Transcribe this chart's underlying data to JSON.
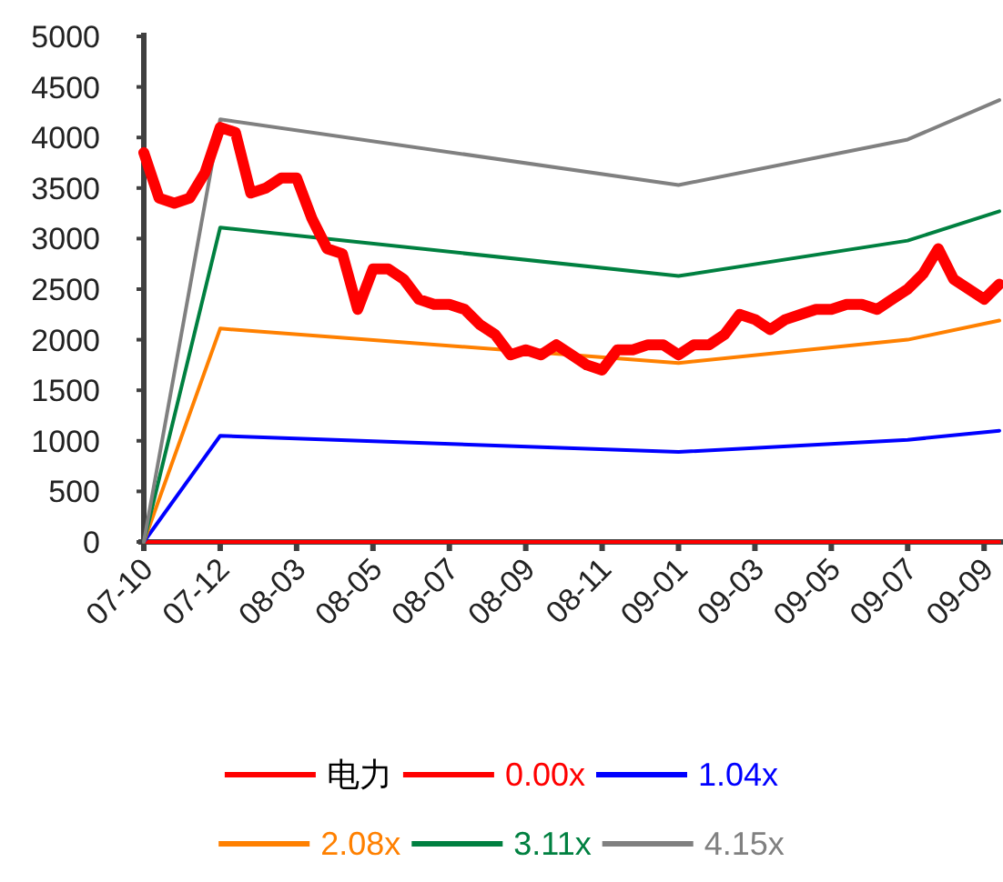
{
  "chart_data": {
    "type": "line",
    "categories": [
      "07-10",
      null,
      null,
      null,
      null,
      "07-12",
      null,
      null,
      null,
      null,
      "08-03",
      null,
      null,
      null,
      null,
      "08-05",
      null,
      null,
      null,
      null,
      "08-07",
      null,
      null,
      null,
      null,
      "08-09",
      null,
      null,
      null,
      null,
      "08-11",
      null,
      null,
      null,
      null,
      "09-01",
      null,
      null,
      null,
      null,
      "09-03",
      null,
      null,
      null,
      null,
      "09-05",
      null,
      null,
      null,
      null,
      "09-07",
      null,
      null,
      null,
      null,
      "09-09",
      null
    ],
    "series": [
      {
        "name": "电力",
        "color": "#ff0000",
        "values": [
          3850,
          3400,
          3350,
          3400,
          3650,
          4100,
          4050,
          3450,
          3500,
          3600,
          3600,
          3200,
          2900,
          2850,
          2300,
          2700,
          2700,
          2600,
          2400,
          2350,
          2350,
          2300,
          2150,
          2050,
          1850,
          1900,
          1850,
          1950,
          1850,
          1750,
          1700,
          1900,
          1900,
          1950,
          1950,
          1850,
          1950,
          1950,
          2050,
          2250,
          2200,
          2100,
          2200,
          2250,
          2300,
          2300,
          2350,
          2350,
          2300,
          2400,
          2500,
          2650,
          2900,
          2600,
          2500,
          2400,
          2550
        ]
      },
      {
        "name": "0.00x",
        "color": "#ff0000",
        "values": [
          0,
          null,
          null,
          null,
          null,
          0,
          null,
          null,
          null,
          null,
          null,
          null,
          null,
          null,
          null,
          null,
          null,
          null,
          null,
          null,
          null,
          null,
          null,
          null,
          null,
          null,
          null,
          null,
          null,
          null,
          null,
          null,
          null,
          null,
          null,
          0,
          null,
          null,
          null,
          null,
          null,
          null,
          null,
          null,
          null,
          null,
          null,
          null,
          null,
          null,
          0,
          null,
          null,
          null,
          null,
          null,
          0
        ]
      },
      {
        "name": "1.04x",
        "color": "#0000ff",
        "values": [
          0,
          null,
          null,
          null,
          null,
          1050,
          null,
          null,
          null,
          null,
          null,
          null,
          null,
          null,
          null,
          null,
          null,
          null,
          null,
          null,
          null,
          null,
          null,
          null,
          null,
          null,
          null,
          null,
          null,
          null,
          null,
          null,
          null,
          null,
          null,
          890,
          null,
          null,
          null,
          null,
          null,
          null,
          null,
          null,
          null,
          null,
          null,
          null,
          null,
          null,
          1010,
          null,
          null,
          null,
          null,
          null,
          1100
        ]
      },
      {
        "name": "2.08x",
        "color": "#ff8000",
        "values": [
          0,
          null,
          null,
          null,
          null,
          2110,
          null,
          null,
          null,
          null,
          null,
          null,
          null,
          null,
          null,
          null,
          null,
          null,
          null,
          null,
          null,
          null,
          null,
          null,
          null,
          null,
          null,
          null,
          null,
          null,
          null,
          null,
          null,
          null,
          null,
          1770,
          null,
          null,
          null,
          null,
          null,
          null,
          null,
          null,
          null,
          null,
          null,
          null,
          null,
          null,
          2000,
          null,
          null,
          null,
          null,
          null,
          2190
        ]
      },
      {
        "name": "3.11x",
        "color": "#008040",
        "values": [
          0,
          null,
          null,
          null,
          null,
          3110,
          null,
          null,
          null,
          null,
          null,
          null,
          null,
          null,
          null,
          null,
          null,
          null,
          null,
          null,
          null,
          null,
          null,
          null,
          null,
          null,
          null,
          null,
          null,
          null,
          null,
          null,
          null,
          null,
          null,
          2630,
          null,
          null,
          null,
          null,
          null,
          null,
          null,
          null,
          null,
          null,
          null,
          null,
          null,
          null,
          2980,
          null,
          null,
          null,
          null,
          null,
          3270
        ]
      },
      {
        "name": "4.15x",
        "color": "#808080",
        "values": [
          0,
          null,
          null,
          null,
          null,
          4180,
          null,
          null,
          null,
          null,
          null,
          null,
          null,
          null,
          null,
          null,
          null,
          null,
          null,
          null,
          null,
          null,
          null,
          null,
          null,
          null,
          null,
          null,
          null,
          null,
          null,
          null,
          null,
          null,
          null,
          3530,
          null,
          null,
          null,
          null,
          null,
          null,
          null,
          null,
          null,
          null,
          null,
          null,
          null,
          null,
          3980,
          null,
          null,
          null,
          null,
          null,
          4370
        ]
      }
    ],
    "ylim": [
      0,
      5000
    ],
    "yticks": [
      0,
      500,
      1000,
      1500,
      2000,
      2500,
      3000,
      3500,
      4000,
      4500,
      5000
    ],
    "grid": false,
    "legend": "bottom"
  }
}
